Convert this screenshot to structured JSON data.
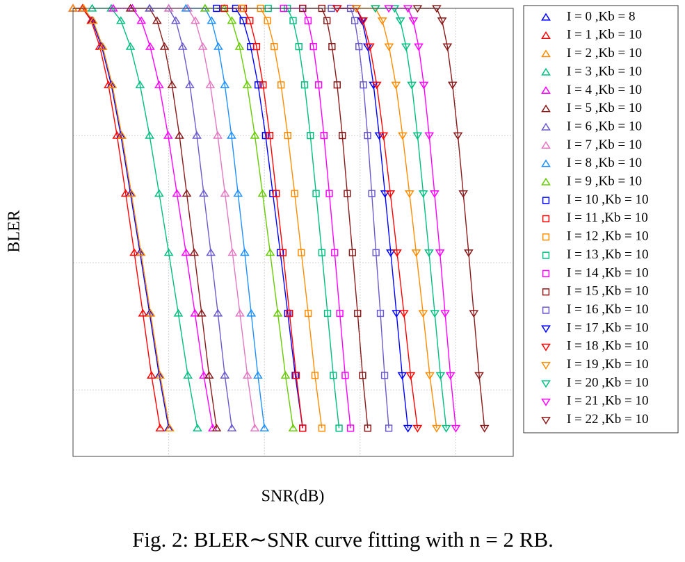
{
  "chart_data": {
    "type": "line",
    "title": "Fig. 2: BLER∼SNR curve fitting with n = 2 RB.",
    "x_label": "SNR(dB)",
    "y_label": "BLER",
    "yscale": "log",
    "xlim": [
      0,
      23
    ],
    "ylim": [
      0.0003,
      1
    ],
    "xticks": [
      5,
      10,
      15,
      20
    ],
    "yticks": [
      0.001,
      0.01,
      0.1,
      1
    ],
    "grid": true,
    "legend": "right",
    "series": [
      {
        "name": "I = 0 ,Kb = 8",
        "color": "#0000ff",
        "marker": "triangle-up",
        "x": [
          0,
          0.5,
          1,
          1.5,
          2,
          2.5,
          3,
          3.5,
          4,
          4.5,
          5
        ],
        "values": [
          1,
          1,
          0.8,
          0.5,
          0.25,
          0.1,
          0.035,
          0.012,
          0.004,
          0.0013,
          0.0005
        ]
      },
      {
        "name": "I = 1 ,Kb = 10",
        "color": "#ff0000",
        "marker": "triangle-up",
        "x": [
          0,
          0.5,
          0.95,
          1.4,
          1.85,
          2.3,
          2.75,
          3.2,
          3.65,
          4.1,
          4.55
        ],
        "values": [
          1,
          1,
          0.8,
          0.5,
          0.25,
          0.1,
          0.035,
          0.012,
          0.004,
          0.0013,
          0.0005
        ]
      },
      {
        "name": "I = 2 ,Kb = 10",
        "color": "#ff8c00",
        "marker": "triangle-up",
        "x": [
          0,
          0.55,
          1.05,
          1.55,
          2.05,
          2.55,
          3.05,
          3.55,
          4.05,
          4.55,
          5.05
        ],
        "values": [
          1,
          1,
          0.8,
          0.5,
          0.25,
          0.1,
          0.035,
          0.012,
          0.004,
          0.0013,
          0.0005
        ]
      },
      {
        "name": "I = 3 ,Kb = 10",
        "color": "#00bf80",
        "marker": "triangle-up",
        "x": [
          1,
          2,
          2.5,
          3,
          3.5,
          4,
          4.5,
          5,
          5.5,
          6,
          6.5
        ],
        "values": [
          1,
          1,
          0.8,
          0.5,
          0.25,
          0.1,
          0.035,
          0.012,
          0.004,
          0.0013,
          0.0005
        ]
      },
      {
        "name": "I = 4 ,Kb = 10",
        "color": "#ff00ff",
        "marker": "triangle-up",
        "x": [
          2.1,
          3.1,
          3.57,
          4.03,
          4.5,
          4.97,
          5.43,
          5.9,
          6.37,
          6.83,
          7.3
        ],
        "values": [
          1,
          1,
          0.8,
          0.5,
          0.25,
          0.1,
          0.035,
          0.012,
          0.004,
          0.0013,
          0.0005
        ]
      },
      {
        "name": "I = 5 ,Kb = 10",
        "color": "#8b1a1a",
        "marker": "triangle-up",
        "x": [
          3,
          4,
          4.39,
          4.78,
          5.17,
          5.56,
          5.94,
          6.33,
          6.72,
          7.11,
          7.5
        ],
        "values": [
          1,
          1,
          0.8,
          0.5,
          0.25,
          0.1,
          0.035,
          0.012,
          0.004,
          0.0013,
          0.0005
        ]
      },
      {
        "name": "I = 6 ,Kb = 10",
        "color": "#6a5acd",
        "marker": "triangle-up",
        "x": [
          4,
          5,
          5.37,
          5.73,
          6.1,
          6.47,
          6.83,
          7.2,
          7.57,
          7.93,
          8.3
        ],
        "values": [
          1,
          1,
          0.8,
          0.5,
          0.25,
          0.1,
          0.035,
          0.012,
          0.004,
          0.0013,
          0.0005
        ]
      },
      {
        "name": "I = 7 ,Kb = 10",
        "color": "#e377c2",
        "marker": "triangle-up",
        "x": [
          5,
          6,
          6.39,
          6.78,
          7.17,
          7.56,
          7.94,
          8.33,
          8.72,
          9.11,
          9.5
        ],
        "values": [
          1,
          1,
          0.8,
          0.5,
          0.25,
          0.1,
          0.035,
          0.012,
          0.004,
          0.0013,
          0.0005
        ]
      },
      {
        "name": "I = 8 ,Kb = 10",
        "color": "#1e90ff",
        "marker": "triangle-up",
        "x": [
          5.9,
          6.9,
          7.24,
          7.59,
          7.93,
          8.28,
          8.62,
          8.97,
          9.31,
          9.66,
          10
        ],
        "values": [
          1,
          1,
          0.8,
          0.5,
          0.25,
          0.1,
          0.035,
          0.012,
          0.004,
          0.0013,
          0.0005
        ]
      },
      {
        "name": "I = 9 ,Kb = 10",
        "color": "#66cc00",
        "marker": "triangle-up",
        "x": [
          6.9,
          7.9,
          8.3,
          8.7,
          9.1,
          9.5,
          9.9,
          10.3,
          10.7,
          11.1,
          11.5
        ],
        "values": [
          1,
          1,
          0.8,
          0.5,
          0.25,
          0.1,
          0.035,
          0.012,
          0.004,
          0.0013,
          0.0005
        ]
      },
      {
        "name": "I = 10 ,Kb = 10",
        "color": "#0000ff",
        "marker": "square",
        "x": [
          7.5,
          8.5,
          8.89,
          9.28,
          9.67,
          10.06,
          10.44,
          10.83,
          11.22,
          11.61,
          12
        ],
        "values": [
          1,
          1,
          0.8,
          0.5,
          0.25,
          0.1,
          0.035,
          0.012,
          0.004,
          0.0013,
          0.0005
        ]
      },
      {
        "name": "I = 11 ,Kb = 10",
        "color": "#ff0000",
        "marker": "square",
        "x": [
          7.9,
          8.9,
          9.24,
          9.59,
          9.93,
          10.28,
          10.62,
          10.97,
          11.31,
          11.66,
          12
        ],
        "values": [
          1,
          1,
          0.8,
          0.5,
          0.25,
          0.1,
          0.035,
          0.012,
          0.004,
          0.0013,
          0.0005
        ]
      },
      {
        "name": "I = 12 ,Kb = 10",
        "color": "#ff8c00",
        "marker": "square",
        "x": [
          8.8,
          9.8,
          10.16,
          10.51,
          10.87,
          11.22,
          11.58,
          11.93,
          12.29,
          12.64,
          13
        ],
        "values": [
          1,
          1,
          0.8,
          0.5,
          0.25,
          0.1,
          0.035,
          0.012,
          0.004,
          0.0013,
          0.0005
        ]
      },
      {
        "name": "I = 13 ,Kb = 10",
        "color": "#00bf80",
        "marker": "square",
        "x": [
          10.2,
          11.2,
          11.5,
          11.8,
          12.1,
          12.4,
          12.7,
          13,
          13.3,
          13.6,
          13.9
        ],
        "values": [
          1,
          1,
          0.8,
          0.5,
          0.25,
          0.1,
          0.035,
          0.012,
          0.004,
          0.0013,
          0.0005
        ]
      },
      {
        "name": "I = 14 ,Kb = 10",
        "color": "#ff00ff",
        "marker": "square",
        "x": [
          11,
          12,
          12.28,
          12.56,
          12.83,
          13.11,
          13.39,
          13.67,
          13.94,
          14.22,
          14.5
        ],
        "values": [
          1,
          1,
          0.8,
          0.5,
          0.25,
          0.1,
          0.035,
          0.012,
          0.004,
          0.0013,
          0.0005
        ]
      },
      {
        "name": "I = 15 ,Kb = 10",
        "color": "#8b1a1a",
        "marker": "square",
        "x": [
          12,
          13,
          13.27,
          13.53,
          13.8,
          14.07,
          14.33,
          14.6,
          14.87,
          15.13,
          15.4
        ],
        "values": [
          1,
          1,
          0.8,
          0.5,
          0.25,
          0.1,
          0.035,
          0.012,
          0.004,
          0.0013,
          0.0005
        ]
      },
      {
        "name": "I = 16 ,Kb = 10",
        "color": "#6a5acd",
        "marker": "square",
        "x": [
          13.5,
          14.5,
          14.72,
          14.94,
          15.17,
          15.39,
          15.61,
          15.83,
          16.06,
          16.28,
          16.5
        ],
        "values": [
          1,
          1,
          0.8,
          0.5,
          0.25,
          0.1,
          0.035,
          0.012,
          0.004,
          0.0013,
          0.0005
        ]
      },
      {
        "name": "I = 17 ,Kb = 10",
        "color": "#0000ff",
        "marker": "triangle-down",
        "x": [
          13.8,
          14.8,
          15.1,
          15.4,
          15.7,
          16,
          16.3,
          16.6,
          16.9,
          17.2,
          17.5
        ],
        "values": [
          1,
          1,
          0.8,
          0.5,
          0.25,
          0.1,
          0.035,
          0.012,
          0.004,
          0.0013,
          0.0005
        ]
      },
      {
        "name": "I = 18 ,Kb = 10",
        "color": "#ff0000",
        "marker": "triangle-down",
        "x": [
          13.8,
          14.8,
          15.16,
          15.51,
          15.87,
          16.22,
          16.58,
          16.93,
          17.29,
          17.64,
          18
        ],
        "values": [
          1,
          1,
          0.8,
          0.5,
          0.25,
          0.1,
          0.035,
          0.012,
          0.004,
          0.0013,
          0.0005
        ]
      },
      {
        "name": "I = 19 ,Kb = 10",
        "color": "#ff8c00",
        "marker": "triangle-down",
        "x": [
          14.8,
          15.8,
          16.16,
          16.51,
          16.87,
          17.22,
          17.58,
          17.93,
          18.29,
          18.64,
          19
        ],
        "values": [
          1,
          1,
          0.8,
          0.5,
          0.25,
          0.1,
          0.035,
          0.012,
          0.004,
          0.0013,
          0.0005
        ]
      },
      {
        "name": "I = 20 ,Kb = 10",
        "color": "#00bf80",
        "marker": "triangle-down",
        "x": [
          15.8,
          16.8,
          17.1,
          17.4,
          17.7,
          18,
          18.3,
          18.6,
          18.9,
          19.2,
          19.5
        ],
        "values": [
          1,
          1,
          0.8,
          0.5,
          0.25,
          0.1,
          0.035,
          0.012,
          0.004,
          0.0013,
          0.0005
        ]
      },
      {
        "name": "I = 21 ,Kb = 10",
        "color": "#ff00ff",
        "marker": "triangle-down",
        "x": [
          16.5,
          17.5,
          17.78,
          18.06,
          18.33,
          18.61,
          18.89,
          19.17,
          19.44,
          19.72,
          20
        ],
        "values": [
          1,
          1,
          0.8,
          0.5,
          0.25,
          0.1,
          0.035,
          0.012,
          0.004,
          0.0013,
          0.0005
        ]
      },
      {
        "name": "I = 22 ,Kb = 10",
        "color": "#8b1a1a",
        "marker": "triangle-down",
        "x": [
          18,
          19,
          19.28,
          19.56,
          19.83,
          20.11,
          20.39,
          20.67,
          20.94,
          21.22,
          21.5
        ],
        "values": [
          1,
          1,
          0.8,
          0.5,
          0.25,
          0.1,
          0.035,
          0.012,
          0.004,
          0.0013,
          0.0005
        ]
      }
    ]
  }
}
